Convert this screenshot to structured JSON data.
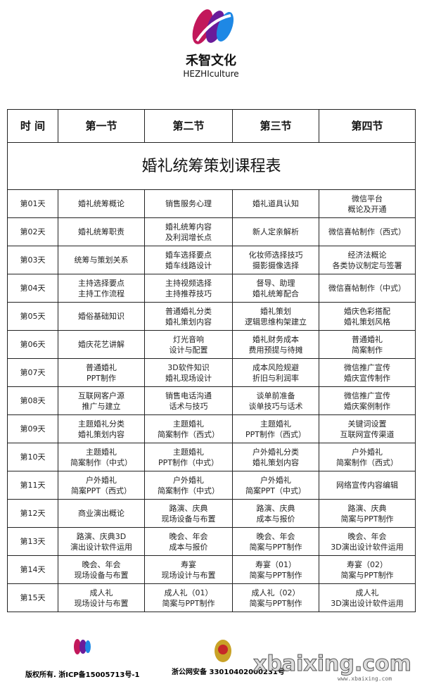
{
  "brand": {
    "name": "禾智文化",
    "sub": "HEZHIculture"
  },
  "title": "婚礼统筹策划课程表",
  "headers": [
    "时 间",
    "第一节",
    "第二节",
    "第三节",
    "第四节"
  ],
  "rows": [
    [
      [
        "第01天"
      ],
      [
        "婚礼统筹概论"
      ],
      [
        "销售服务心理"
      ],
      [
        "婚礼道具认知"
      ],
      [
        "微信平台",
        "概论及开通"
      ]
    ],
    [
      [
        "第02天"
      ],
      [
        "婚礼统筹职责"
      ],
      [
        "婚礼统筹内容",
        "及利润增长点"
      ],
      [
        "新人定亲解析"
      ],
      [
        "微信喜帖制作（西式）"
      ]
    ],
    [
      [
        "第03天"
      ],
      [
        "统筹与策划关系"
      ],
      [
        "婚车选择要点",
        "婚车线路设计"
      ],
      [
        "化妆师选择技巧",
        "摄影摄像选择"
      ],
      [
        "经济法概论",
        "各类协议制定与签署"
      ]
    ],
    [
      [
        "第04天"
      ],
      [
        "主持选择要点",
        "主持工作流程"
      ],
      [
        "主持视频选择",
        "主持推荐技巧"
      ],
      [
        "督导、助理",
        "婚礼统筹配合"
      ],
      [
        "微信喜帖制作（中式）"
      ]
    ],
    [
      [
        "第05天"
      ],
      [
        "婚俗基础知识"
      ],
      [
        "普通婚礼分类",
        "婚礼策划内容"
      ],
      [
        "婚礼策划",
        "逻辑思维构架建立"
      ],
      [
        "婚庆色彩搭配",
        "婚礼策划风格"
      ]
    ],
    [
      [
        "第06天"
      ],
      [
        "婚庆花艺讲解"
      ],
      [
        "灯光音响",
        "设计与配置"
      ],
      [
        "婚礼财务成本",
        "费用预提与待摊"
      ],
      [
        "普通婚礼",
        "简案制作"
      ]
    ],
    [
      [
        "第07天"
      ],
      [
        "普通婚礼",
        "PPT制作"
      ],
      [
        "3D软件知识",
        "婚礼现场设计"
      ],
      [
        "成本风险规避",
        "折旧与利润率"
      ],
      [
        "微信推广宣传",
        "婚庆宣传制作"
      ]
    ],
    [
      [
        "第08天"
      ],
      [
        "互联网客户源",
        "推广与建立"
      ],
      [
        "销售电话沟通",
        "话术与技巧"
      ],
      [
        "谈单前准备",
        "谈单技巧与话术"
      ],
      [
        "微信推广宣传",
        "婚庆案例制作"
      ]
    ],
    [
      [
        "第09天"
      ],
      [
        "主题婚礼分类",
        "婚礼策划内容"
      ],
      [
        "主题婚礼",
        "简案制作（西式）"
      ],
      [
        "主题婚礼",
        "PPT制作（西式）"
      ],
      [
        "关键词设置",
        "互联网宣传渠道"
      ]
    ],
    [
      [
        "第10天"
      ],
      [
        "主题婚礼",
        "简案制作（中式）"
      ],
      [
        "主题婚礼",
        "PPT制作（中式）"
      ],
      [
        "户外婚礼分类",
        "婚礼策划内容"
      ],
      [
        "户外婚礼",
        "简案制作（西式）"
      ]
    ],
    [
      [
        "第11天"
      ],
      [
        "户外婚礼",
        "简案PPT（西式）"
      ],
      [
        "户外婚礼",
        "简案制作（中式）"
      ],
      [
        "户外婚礼",
        "简案PPT（中式）"
      ],
      [
        "网络宣传内容编辑"
      ]
    ],
    [
      [
        "第12天"
      ],
      [
        "商业演出概论"
      ],
      [
        "路演、庆典",
        "现场设备与布置"
      ],
      [
        "路演、庆典",
        "成本与报价"
      ],
      [
        "路演、庆典",
        "简案与PPT制作"
      ]
    ],
    [
      [
        "第13天"
      ],
      [
        "路演、庆典3D",
        "演出设计软件运用"
      ],
      [
        "晚会、年会",
        "成本与报价"
      ],
      [
        "晚会、年会",
        "简案与PPT制作"
      ],
      [
        "晚会、年会",
        "3D演出设计软件运用"
      ]
    ],
    [
      [
        "第14天"
      ],
      [
        "晚会、年会",
        "现场设备与布置"
      ],
      [
        "寿宴",
        "现场设计与布置"
      ],
      [
        "寿宴（01）",
        "简案与PPT制作"
      ],
      [
        "寿宴（02）",
        "简案与PPT制作"
      ]
    ],
    [
      [
        "第15天"
      ],
      [
        "成人礼",
        "现场设计与布置"
      ],
      [
        "成人礼（01）",
        "简案与PPT制作"
      ],
      [
        "成人礼（02）",
        "简案与PPT制作"
      ],
      [
        "成人礼",
        "3D演出设计软件运用"
      ]
    ]
  ],
  "footer": {
    "copyright": "版权所有. 浙ICP备15005713号-1",
    "police": "浙公网安备 33010402000231号",
    "watermark": "xbaixing.com",
    "watermark_url": "www.xbaixing.com"
  }
}
